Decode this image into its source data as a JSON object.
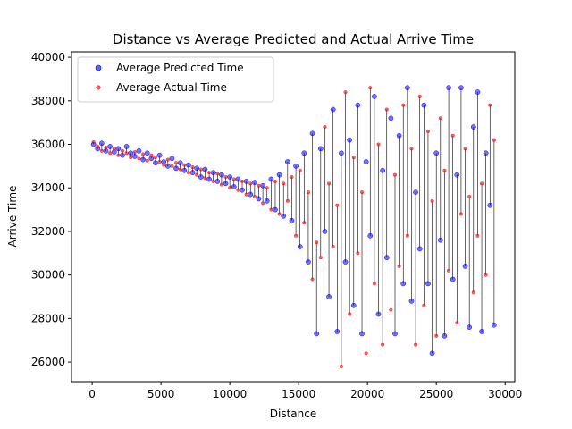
{
  "chart_data": {
    "type": "scatter",
    "title": "Distance vs Average Predicted and Actual Arrive Time",
    "xlabel": "Distance",
    "ylabel": "Arrive Time",
    "xlim": [
      -1500,
      30700
    ],
    "ylim": [
      25100,
      40250
    ],
    "xticks": [
      0,
      5000,
      10000,
      15000,
      20000,
      25000,
      30000
    ],
    "yticks": [
      26000,
      28000,
      30000,
      32000,
      34000,
      36000,
      38000,
      40000
    ],
    "grid": false,
    "legend_position": "upper-left",
    "series": [
      {
        "name": "Average Predicted Time",
        "color": "#0000ff",
        "marker_size": 4
      },
      {
        "name": "Average Actual Time",
        "color": "#ff0000",
        "marker_size": 3
      }
    ],
    "connector_color": "#000000",
    "pairs": [
      [
        100,
        36000,
        36100
      ],
      [
        400,
        35800,
        35900
      ],
      [
        700,
        36050,
        35700
      ],
      [
        1000,
        35700,
        35850
      ],
      [
        1300,
        35900,
        35600
      ],
      [
        1600,
        35650,
        35800
      ],
      [
        1900,
        35800,
        35500
      ],
      [
        2200,
        35500,
        35700
      ],
      [
        2500,
        35900,
        35600
      ],
      [
        2800,
        35600,
        35400
      ],
      [
        3100,
        35450,
        35650
      ],
      [
        3400,
        35700,
        35350
      ],
      [
        3700,
        35300,
        35550
      ],
      [
        4000,
        35600,
        35250
      ],
      [
        4300,
        35350,
        35500
      ],
      [
        4600,
        35150,
        35400
      ],
      [
        4900,
        35500,
        35200
      ],
      [
        5200,
        35200,
        35050
      ],
      [
        5500,
        35000,
        35300
      ],
      [
        5800,
        35350,
        35000
      ],
      [
        6100,
        34900,
        35150
      ],
      [
        6400,
        35150,
        34850
      ],
      [
        6700,
        34800,
        35050
      ],
      [
        7000,
        35050,
        34700
      ],
      [
        7300,
        34700,
        34950
      ],
      [
        7600,
        34900,
        34600
      ],
      [
        7900,
        34500,
        34850
      ],
      [
        8200,
        34850,
        34450
      ],
      [
        8500,
        34400,
        34700
      ],
      [
        8800,
        34700,
        34300
      ],
      [
        9100,
        34300,
        34650
      ],
      [
        9400,
        34600,
        34150
      ],
      [
        9700,
        34200,
        34500
      ],
      [
        10000,
        34500,
        34000
      ],
      [
        10300,
        34050,
        34400
      ],
      [
        10600,
        34400,
        33900
      ],
      [
        10900,
        33900,
        34300
      ],
      [
        11200,
        34300,
        33700
      ],
      [
        11500,
        33700,
        34200
      ],
      [
        11800,
        34250,
        33600
      ],
      [
        12100,
        33500,
        34100
      ],
      [
        12400,
        34100,
        33300
      ],
      [
        12700,
        33400,
        34000
      ],
      [
        13000,
        34400,
        33000
      ],
      [
        13300,
        33000,
        34300
      ],
      [
        13600,
        34600,
        32800
      ],
      [
        13900,
        32700,
        34200
      ],
      [
        14200,
        35200,
        33400
      ],
      [
        14500,
        32500,
        34500
      ],
      [
        14800,
        35000,
        31800
      ],
      [
        15100,
        31300,
        34800
      ],
      [
        15400,
        35600,
        32400
      ],
      [
        15700,
        30600,
        33800
      ],
      [
        16000,
        36500,
        29800
      ],
      [
        16300,
        27300,
        31500
      ],
      [
        16600,
        35800,
        30800
      ],
      [
        16900,
        32000,
        36800
      ],
      [
        17200,
        29000,
        34200
      ],
      [
        17500,
        37600,
        31300
      ],
      [
        17800,
        27400,
        33200
      ],
      [
        18100,
        35600,
        25800
      ],
      [
        18400,
        30600,
        38400
      ],
      [
        18700,
        36200,
        28200
      ],
      [
        19000,
        28600,
        35400
      ],
      [
        19300,
        37800,
        31000
      ],
      [
        19600,
        27300,
        33800
      ],
      [
        19900,
        35200,
        26400
      ],
      [
        20200,
        31800,
        38600
      ],
      [
        20500,
        38200,
        29600
      ],
      [
        20800,
        28200,
        36000
      ],
      [
        21100,
        34800,
        26800
      ],
      [
        21400,
        30800,
        37600
      ],
      [
        21700,
        37200,
        28400
      ],
      [
        22000,
        27300,
        34600
      ],
      [
        22300,
        36400,
        30400
      ],
      [
        22600,
        29600,
        37800
      ],
      [
        22900,
        38600,
        31800
      ],
      [
        23200,
        28800,
        35800
      ],
      [
        23500,
        33800,
        26800
      ],
      [
        23800,
        31200,
        38200
      ],
      [
        24100,
        37800,
        28600
      ],
      [
        24400,
        29600,
        36600
      ],
      [
        24700,
        26400,
        33400
      ],
      [
        25000,
        35600,
        27200
      ],
      [
        25300,
        31600,
        37200
      ],
      [
        25600,
        27200,
        34800
      ],
      [
        25900,
        38600,
        30200
      ],
      [
        26200,
        29800,
        36400
      ],
      [
        26500,
        34600,
        27800
      ],
      [
        26800,
        38600,
        32800
      ],
      [
        27100,
        30400,
        35800
      ],
      [
        27400,
        27600,
        33600
      ],
      [
        27700,
        36800,
        29200
      ],
      [
        28000,
        38400,
        31800
      ],
      [
        28300,
        27400,
        34200
      ],
      [
        28600,
        35600,
        30000
      ],
      [
        28900,
        33200,
        37800
      ],
      [
        29200,
        27700,
        36200
      ]
    ]
  }
}
